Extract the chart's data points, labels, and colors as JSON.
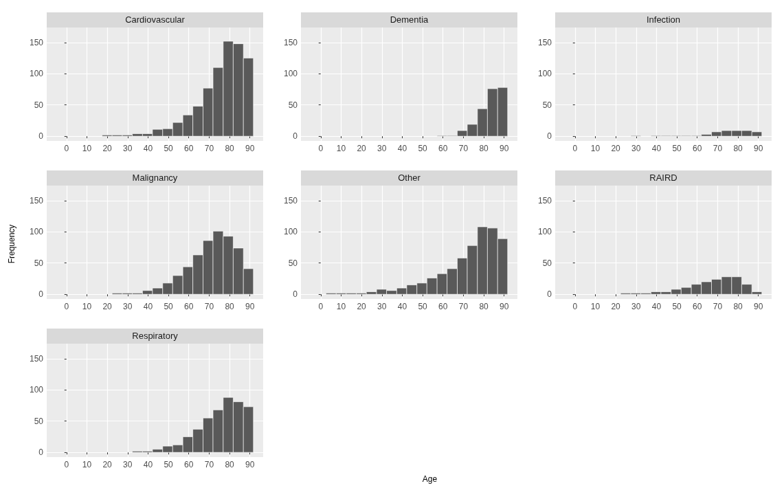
{
  "chart_data": [
    {
      "type": "histogram",
      "title": "Cardiovascular",
      "bins": [
        2.6,
        7.6,
        12.5,
        17.5,
        22.4,
        27.4,
        32.3,
        37.3,
        42.2,
        47.2,
        52.1,
        57.1,
        62.0,
        67.0,
        71.9,
        76.9,
        81.8,
        86.8,
        91.7
      ],
      "values": [
        0,
        0,
        0,
        2,
        2,
        2,
        4,
        4,
        11,
        12,
        22,
        34,
        48,
        77,
        110,
        152,
        148,
        125
      ],
      "color": "#595959",
      "xlim": [
        -9.7,
        96.5
      ],
      "xticks": [
        0,
        10,
        20,
        30,
        40,
        50,
        60,
        70,
        80,
        90
      ],
      "ylim": [
        -7.5,
        174
      ],
      "yticks": [
        0,
        50,
        100,
        150
      ],
      "grid": true
    },
    {
      "type": "histogram",
      "title": "Dementia",
      "bins": [
        2.6,
        7.6,
        12.5,
        17.5,
        22.4,
        27.4,
        32.3,
        37.3,
        42.2,
        47.2,
        52.1,
        57.1,
        62.0,
        67.0,
        71.9,
        76.9,
        81.8,
        86.8,
        91.7
      ],
      "values": [
        0,
        0,
        0,
        0,
        0,
        0,
        0,
        0,
        0,
        0,
        0,
        1,
        1,
        9,
        19,
        44,
        76,
        78
      ],
      "color": "#595959",
      "xlim": [
        -9.7,
        96.5
      ],
      "xticks": [
        0,
        10,
        20,
        30,
        40,
        50,
        60,
        70,
        80,
        90
      ],
      "ylim": [
        -7.5,
        174
      ],
      "yticks": [
        0,
        50,
        100,
        150
      ],
      "grid": true
    },
    {
      "type": "histogram",
      "title": "Infection",
      "bins": [
        2.6,
        7.6,
        12.5,
        17.5,
        22.4,
        27.4,
        32.3,
        37.3,
        42.2,
        47.2,
        52.1,
        57.1,
        62.0,
        67.0,
        71.9,
        76.9,
        81.8,
        86.8,
        91.7
      ],
      "values": [
        0,
        0,
        0,
        0,
        0,
        1,
        0,
        1,
        1,
        1,
        1,
        1,
        3,
        7,
        9,
        9,
        9,
        7
      ],
      "color": "#595959",
      "xlim": [
        -9.7,
        96.5
      ],
      "xticks": [
        0,
        10,
        20,
        30,
        40,
        50,
        60,
        70,
        80,
        90
      ],
      "ylim": [
        -7.5,
        174
      ],
      "yticks": [
        0,
        50,
        100,
        150
      ],
      "grid": true
    },
    {
      "type": "histogram",
      "title": "Malignancy",
      "ylabel": "Frequency",
      "bins": [
        2.6,
        7.6,
        12.5,
        17.5,
        22.4,
        27.4,
        32.3,
        37.3,
        42.2,
        47.2,
        52.1,
        57.1,
        62.0,
        67.0,
        71.9,
        76.9,
        81.8,
        86.8,
        91.7
      ],
      "values": [
        0,
        0,
        0,
        0,
        2,
        2,
        2,
        6,
        10,
        18,
        30,
        44,
        63,
        86,
        101,
        93,
        74,
        41
      ],
      "color": "#595959",
      "xlim": [
        -9.7,
        96.5
      ],
      "xticks": [
        0,
        10,
        20,
        30,
        40,
        50,
        60,
        70,
        80,
        90
      ],
      "ylim": [
        -7.5,
        174
      ],
      "yticks": [
        0,
        50,
        100,
        150
      ],
      "grid": true
    },
    {
      "type": "histogram",
      "title": "Other",
      "xlabel": "Age",
      "bins": [
        2.6,
        7.6,
        12.5,
        17.5,
        22.4,
        27.4,
        32.3,
        37.3,
        42.2,
        47.2,
        52.1,
        57.1,
        62.0,
        67.0,
        71.9,
        76.9,
        81.8,
        86.8,
        91.7
      ],
      "values": [
        2,
        2,
        2,
        2,
        4,
        8,
        6,
        10,
        15,
        18,
        26,
        33,
        41,
        58,
        78,
        108,
        106,
        89
      ],
      "color": "#595959",
      "xlim": [
        -9.7,
        96.5
      ],
      "xticks": [
        0,
        10,
        20,
        30,
        40,
        50,
        60,
        70,
        80,
        90
      ],
      "ylim": [
        -7.5,
        174
      ],
      "yticks": [
        0,
        50,
        100,
        150
      ],
      "grid": true
    },
    {
      "type": "histogram",
      "title": "RAIRD",
      "bins": [
        2.6,
        7.6,
        12.5,
        17.5,
        22.4,
        27.4,
        32.3,
        37.3,
        42.2,
        47.2,
        52.1,
        57.1,
        62.0,
        67.0,
        71.9,
        76.9,
        81.8,
        86.8,
        91.7
      ],
      "values": [
        0,
        0,
        0,
        0,
        2,
        2,
        2,
        4,
        4,
        8,
        11,
        16,
        20,
        24,
        28,
        28,
        16,
        4
      ],
      "color": "#595959",
      "xlim": [
        -9.7,
        96.5
      ],
      "xticks": [
        0,
        10,
        20,
        30,
        40,
        50,
        60,
        70,
        80,
        90
      ],
      "ylim": [
        -7.5,
        174
      ],
      "yticks": [
        0,
        50,
        100,
        150
      ],
      "grid": true
    },
    {
      "type": "histogram",
      "title": "Respiratory",
      "bins": [
        2.6,
        7.6,
        12.5,
        17.5,
        22.4,
        27.4,
        32.3,
        37.3,
        42.2,
        47.2,
        52.1,
        57.1,
        62.0,
        67.0,
        71.9,
        76.9,
        81.8,
        86.8,
        91.7
      ],
      "values": [
        0,
        0,
        0,
        0,
        0,
        0,
        2,
        2,
        5,
        10,
        12,
        25,
        37,
        55,
        68,
        88,
        81,
        73
      ],
      "color": "#595959",
      "xlim": [
        -9.7,
        96.5
      ],
      "xticks": [
        0,
        10,
        20,
        30,
        40,
        50,
        60,
        70,
        80,
        90
      ],
      "ylim": [
        -7.5,
        174
      ],
      "yticks": [
        0,
        50,
        100,
        150
      ],
      "grid": true
    }
  ]
}
